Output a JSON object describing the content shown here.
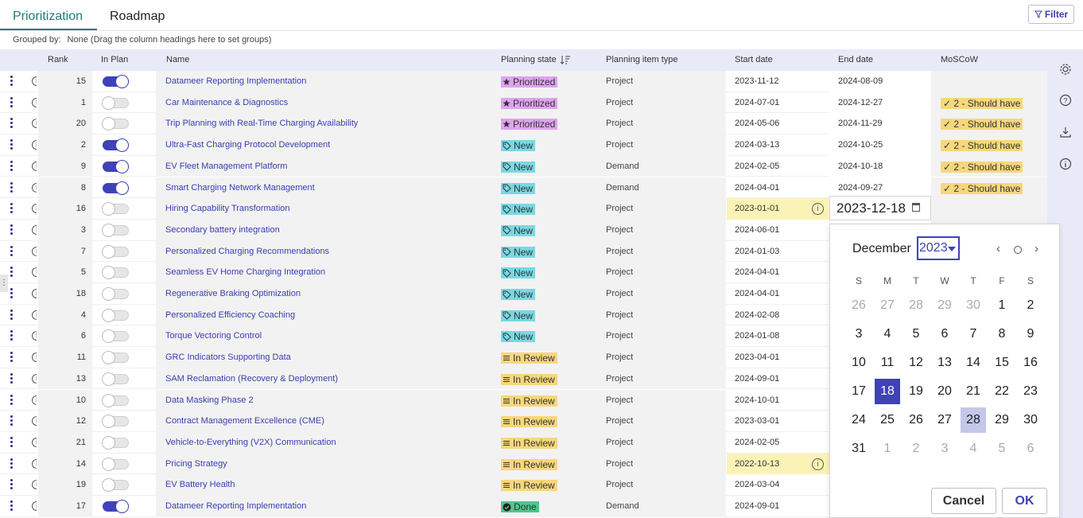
{
  "tabs": [
    {
      "label": "Prioritization"
    },
    {
      "label": "Roadmap"
    }
  ],
  "filter_label": "Filter",
  "grouped": {
    "label": "Grouped by:",
    "value": "None (Drag the column headings here to set groups)"
  },
  "columns": {
    "rank": "Rank",
    "in_plan": "In Plan",
    "name": "Name",
    "planning_state": "Planning state",
    "planning_item_type": "Planning item type",
    "start_date": "Start date",
    "end_date": "End date",
    "moscow": "MoSCoW"
  },
  "colors": {
    "accent": "#3f42b8",
    "tab_active": "#1f7a78",
    "prioritized": "#dfa3ef",
    "new": "#79d8e3",
    "in_review": "#f7d77c",
    "done": "#52c48a",
    "highlight": "#fbf3b6"
  },
  "rows": [
    {
      "rank": "15",
      "in_plan": true,
      "name": "Datameer Reporting Implementation",
      "state": "Prioritized",
      "state_icon": "star-icon",
      "type": "Project",
      "start": "2023-11-12",
      "end": "2024-08-09",
      "moscow": ""
    },
    {
      "rank": "1",
      "in_plan": false,
      "name": "Car Maintenance & Diagnostics",
      "state": "Prioritized",
      "state_icon": "star-icon",
      "type": "Project",
      "start": "2024-07-01",
      "end": "2024-12-27",
      "moscow": "2 - Should have"
    },
    {
      "rank": "20",
      "in_plan": false,
      "name": "Trip Planning with Real-Time Charging Availability",
      "state": "Prioritized",
      "state_icon": "star-icon",
      "type": "Project",
      "start": "2024-05-06",
      "end": "2024-11-29",
      "moscow": "2 - Should have"
    },
    {
      "rank": "2",
      "in_plan": true,
      "name": "Ultra-Fast Charging Protocol Development",
      "state": "New",
      "state_icon": "tag-icon",
      "type": "Project",
      "start": "2024-03-13",
      "end": "2024-10-25",
      "moscow": "2 - Should have"
    },
    {
      "rank": "9",
      "in_plan": true,
      "name": "EV Fleet Management Platform",
      "state": "New",
      "state_icon": "tag-icon",
      "type": "Demand",
      "start": "2024-02-05",
      "end": "2024-10-18",
      "moscow": "2 - Should have"
    },
    {
      "rank": "8",
      "in_plan": true,
      "name": "Smart Charging Network Management",
      "state": "New",
      "state_icon": "tag-icon",
      "type": "Demand",
      "start": "2024-04-01",
      "end": "2024-09-27",
      "moscow": "2 - Should have"
    },
    {
      "rank": "16",
      "in_plan": false,
      "name": "Hiring Capability Transformation",
      "state": "New",
      "state_icon": "tag-icon",
      "type": "Project",
      "start": "2023-01-01",
      "end": "",
      "moscow": "",
      "highlight": true,
      "warn": true
    },
    {
      "rank": "3",
      "in_plan": false,
      "name": "Secondary battery integration",
      "state": "New",
      "state_icon": "tag-icon",
      "type": "Project",
      "start": "2024-06-01",
      "end": "",
      "moscow": ""
    },
    {
      "rank": "7",
      "in_plan": false,
      "name": "Personalized Charging Recommendations",
      "state": "New",
      "state_icon": "tag-icon",
      "type": "Project",
      "start": "2024-01-03",
      "end": "",
      "moscow": ""
    },
    {
      "rank": "5",
      "in_plan": false,
      "name": "Seamless EV Home Charging Integration",
      "state": "New",
      "state_icon": "tag-icon",
      "type": "Project",
      "start": "2024-04-01",
      "end": "",
      "moscow": ""
    },
    {
      "rank": "18",
      "in_plan": false,
      "name": "Regenerative Braking Optimization",
      "state": "New",
      "state_icon": "tag-icon",
      "type": "Project",
      "start": "2024-04-01",
      "end": "",
      "moscow": ""
    },
    {
      "rank": "4",
      "in_plan": false,
      "name": "Personalized Efficiency Coaching",
      "state": "New",
      "state_icon": "tag-icon",
      "type": "Project",
      "start": "2024-02-08",
      "end": "",
      "moscow": ""
    },
    {
      "rank": "6",
      "in_plan": false,
      "name": "Torque Vectoring Control",
      "state": "New",
      "state_icon": "tag-icon",
      "type": "Project",
      "start": "2024-01-08",
      "end": "",
      "moscow": ""
    },
    {
      "rank": "11",
      "in_plan": false,
      "name": "GRC Indicators Supporting Data",
      "state": "In Review",
      "state_icon": "list-icon",
      "type": "Project",
      "start": "2023-04-01",
      "end": "",
      "moscow": ""
    },
    {
      "rank": "13",
      "in_plan": false,
      "name": "SAM Reclamation (Recovery & Deployment)",
      "state": "In Review",
      "state_icon": "list-icon",
      "type": "Project",
      "start": "2024-09-01",
      "end": "",
      "moscow": ""
    },
    {
      "rank": "10",
      "in_plan": false,
      "name": "Data Masking Phase 2",
      "state": "In Review",
      "state_icon": "list-icon",
      "type": "Project",
      "start": "2024-10-01",
      "end": "",
      "moscow": ""
    },
    {
      "rank": "12",
      "in_plan": false,
      "name": "Contract Management Excellence (CME)",
      "state": "In Review",
      "state_icon": "list-icon",
      "type": "Project",
      "start": "2023-03-01",
      "end": "",
      "moscow": ""
    },
    {
      "rank": "21",
      "in_plan": false,
      "name": "Vehicle-to-Everything (V2X) Communication",
      "state": "In Review",
      "state_icon": "list-icon",
      "type": "Project",
      "start": "2024-02-05",
      "end": "",
      "moscow": ""
    },
    {
      "rank": "14",
      "in_plan": false,
      "name": "Pricing Strategy",
      "state": "In Review",
      "state_icon": "list-icon",
      "type": "Project",
      "start": "2022-10-13",
      "end": "",
      "moscow": "",
      "highlight": true,
      "warn": true
    },
    {
      "rank": "19",
      "in_plan": false,
      "name": "EV Battery Health",
      "state": "In Review",
      "state_icon": "list-icon",
      "type": "Project",
      "start": "2024-03-04",
      "end": "",
      "moscow": ""
    },
    {
      "rank": "17",
      "in_plan": true,
      "name": "Datameer Reporting Implementation",
      "state": "Done",
      "state_icon": "check-circle-icon",
      "type": "Demand",
      "start": "2024-09-01",
      "end": "",
      "moscow": ""
    }
  ],
  "date_input_value": "2023-12-18",
  "datepicker": {
    "month": "December",
    "year": "2023",
    "weekdays": [
      "S",
      "M",
      "T",
      "W",
      "T",
      "F",
      "S"
    ],
    "weeks": [
      [
        {
          "d": "26",
          "m": true
        },
        {
          "d": "27",
          "m": true
        },
        {
          "d": "28",
          "m": true
        },
        {
          "d": "29",
          "m": true
        },
        {
          "d": "30",
          "m": true
        },
        {
          "d": "1"
        },
        {
          "d": "2"
        }
      ],
      [
        {
          "d": "3"
        },
        {
          "d": "4"
        },
        {
          "d": "5"
        },
        {
          "d": "6"
        },
        {
          "d": "7"
        },
        {
          "d": "8"
        },
        {
          "d": "9"
        }
      ],
      [
        {
          "d": "10"
        },
        {
          "d": "11"
        },
        {
          "d": "12"
        },
        {
          "d": "13"
        },
        {
          "d": "14"
        },
        {
          "d": "15"
        },
        {
          "d": "16"
        }
      ],
      [
        {
          "d": "17"
        },
        {
          "d": "18",
          "sel": true
        },
        {
          "d": "19"
        },
        {
          "d": "20"
        },
        {
          "d": "21"
        },
        {
          "d": "22"
        },
        {
          "d": "23"
        }
      ],
      [
        {
          "d": "24"
        },
        {
          "d": "25"
        },
        {
          "d": "26"
        },
        {
          "d": "27"
        },
        {
          "d": "28",
          "hover": true
        },
        {
          "d": "29"
        },
        {
          "d": "30"
        }
      ],
      [
        {
          "d": "31"
        },
        {
          "d": "1",
          "m": true
        },
        {
          "d": "2",
          "m": true
        },
        {
          "d": "3",
          "m": true
        },
        {
          "d": "4",
          "m": true
        },
        {
          "d": "5",
          "m": true
        },
        {
          "d": "6",
          "m": true
        }
      ]
    ],
    "cancel": "Cancel",
    "ok": "OK"
  },
  "side_icons": [
    "gear-icon",
    "help-icon",
    "download-icon",
    "info-icon"
  ]
}
